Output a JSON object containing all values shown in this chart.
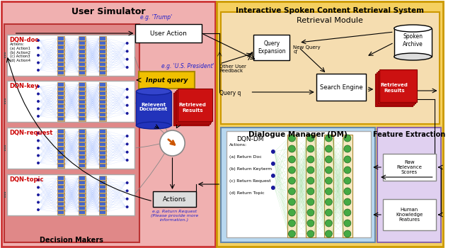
{
  "title_left": "User Simulator",
  "title_right": "Interactive Spoken Content Retrieval System",
  "subtitle_retrieval": "Retrieval Module",
  "subtitle_dm": "Dialogue Manager (DM)",
  "subtitle_fe": "Feature Extraction",
  "dqn_labels": [
    "DQN-doc",
    "DQN-key",
    "DQN-request",
    "DQN-topic"
  ],
  "decision_makers": "Decision Makers",
  "user_action": "User Action",
  "input_query": "Input query",
  "query_expansion": "Query\nExpansion",
  "new_query": "New Query\nq'",
  "spoken_archive": "Spoken\nArchive",
  "search_engine": "Search Engine",
  "retrieved_results_text": "Retrieved\nResults",
  "query_q": "Query q",
  "other_user_feedback": "Other User\nFeedback",
  "relevent_document": "Relevent\nDocument",
  "actions_box": "Actions",
  "eg_trump": "e.g. 'Trump'",
  "eg_us_president": "e.g. 'U.S. President'",
  "eg_return_request": "e.g. Return Request\n(Please provide more\ninformation.)",
  "raw_relevance": "Raw\nRelevance\nScores",
  "human_knowledge": "Human\nKnowledge\nFeatures",
  "dm_actions": "Actions:\n(a) Return Doc\n(b) Return Keyterm\n(c) Return Request\n(d) Return Topic",
  "dqn_dm": "DQN-DM",
  "doc_actions": "Actions:\n(a) Action1\n(b) Action2\n(c) Action3\n(d) Action4"
}
